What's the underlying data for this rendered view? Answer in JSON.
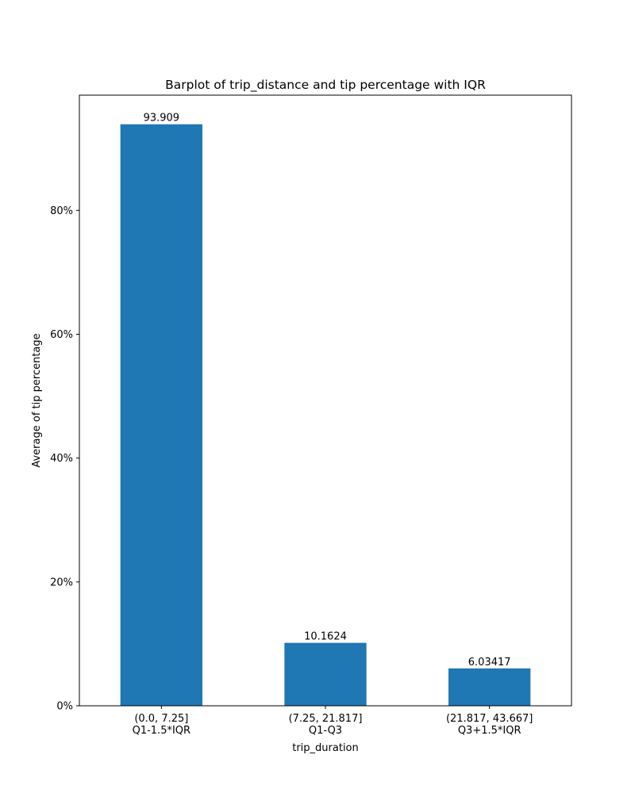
{
  "chart_data": {
    "type": "bar",
    "title": "Barplot of trip_distance and tip percentage with IQR",
    "xlabel": "trip_duration",
    "ylabel": "Average of tip percentage",
    "categories": [
      [
        "(0.0, 7.25]",
        "Q1-1.5*IQR"
      ],
      [
        "(7.25, 21.817]",
        "Q1-Q3"
      ],
      [
        "(21.817, 43.667]",
        "Q3+1.5*IQR"
      ]
    ],
    "values": [
      93.909,
      10.1624,
      6.03417
    ],
    "value_labels": [
      "93.909",
      "10.1624",
      "6.03417"
    ],
    "ylim": [
      0,
      98.61
    ],
    "yticks": [
      0,
      20,
      40,
      60,
      80
    ],
    "ytick_labels": [
      "0%",
      "20%",
      "40%",
      "60%",
      "80%"
    ],
    "bar_color": "#1f77b4",
    "grid": false,
    "legend": "none"
  }
}
